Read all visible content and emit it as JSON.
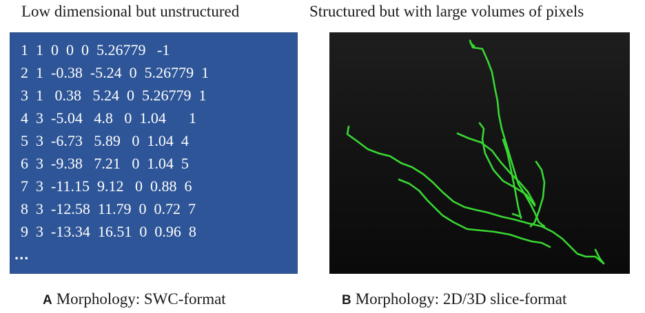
{
  "panel_a": {
    "heading": "Low dimensional but unstructured",
    "rows": [
      "1  1  0  0  0  5.26779   -1",
      "2  1  -0.38  -5.24  0  5.26779  1",
      "3  1   0.38   5.24  0  5.26779  1",
      "4  3  -5.04   4.8   0  1.04      1",
      "5  3  -6.73   5.89   0  1.04  4",
      "6  3  -9.38   7.21   0  1.04  5",
      "7  3  -11.15  9.12   0  0.88  6",
      "8  3  -12.58  11.79  0  0.72  7",
      "9  3  -13.34  16.51  0  0.96  8"
    ],
    "more": "...",
    "caption_letter": "A",
    "caption_text": "Morphology: SWC-format",
    "box_color": "#2e5597"
  },
  "panel_b": {
    "heading": "Structured but with large volumes of pixels",
    "caption_letter": "B",
    "caption_text": "Morphology: 2D/3D slice-format",
    "background_color": "#141414",
    "trace_color": "#39d833"
  }
}
